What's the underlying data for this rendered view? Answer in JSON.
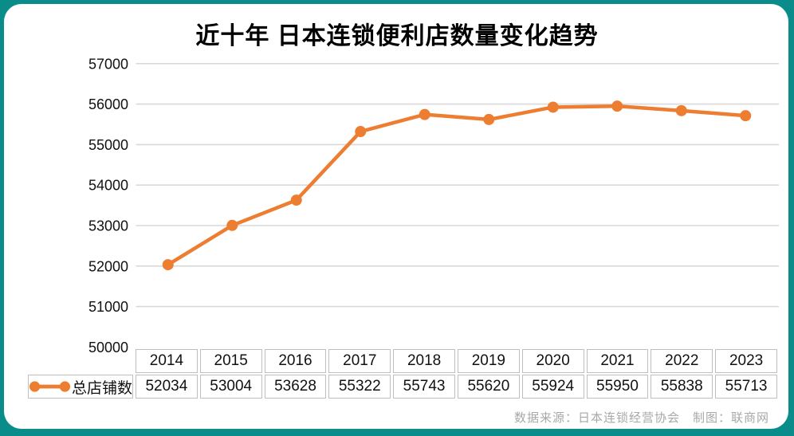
{
  "title": "近十年 日本连锁便利店数量变化趋势",
  "footer": {
    "source": "数据来源：日本连锁经营协会　制图：联商网"
  },
  "colors": {
    "accent": "#ED7D31",
    "frame": "#0A8C8B",
    "gridline": "#D9D9D9",
    "table_border": "#BFBFBF",
    "muted_text": "#A8A8A8"
  },
  "chart_data": {
    "type": "line",
    "title": "近十年 日本连锁便利店数量变化趋势",
    "categories": [
      "2014",
      "2015",
      "2016",
      "2017",
      "2018",
      "2019",
      "2020",
      "2021",
      "2022",
      "2023"
    ],
    "series": [
      {
        "name": "总店铺数",
        "values": [
          52034,
          53004,
          53628,
          55322,
          55743,
          55620,
          55924,
          55950,
          55838,
          55713
        ]
      }
    ],
    "ylim": [
      50000,
      57000
    ],
    "yticks": [
      50000,
      51000,
      52000,
      53000,
      54000,
      55000,
      56000,
      57000
    ],
    "grid": "horizontal",
    "legend_position": "table-left",
    "marker": "circle",
    "line_color": "#ED7D31",
    "data_table_shown": true
  }
}
